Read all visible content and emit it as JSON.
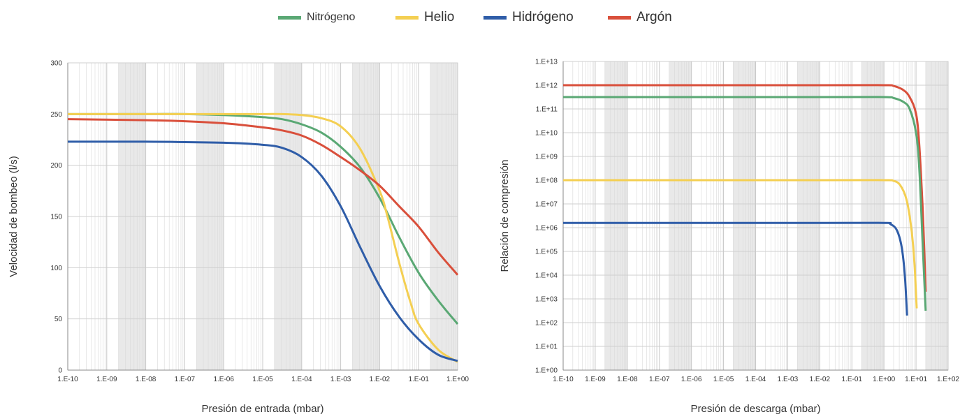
{
  "colors": {
    "nitrogeno": "#5aa874",
    "helio": "#f4cf52",
    "hidrogeno": "#2f5da8",
    "argon": "#d94f3b",
    "grid": "#d9d9d9",
    "band": "#e9e9e9"
  },
  "legend": [
    {
      "label": "Nitrógeno",
      "color": "#5aa874",
      "size": "small"
    },
    {
      "label": "Helio",
      "color": "#f4cf52",
      "size": "normal"
    },
    {
      "label": "Hidrógeno",
      "color": "#2f5da8",
      "size": "normal"
    },
    {
      "label": "Argón",
      "color": "#d94f3b",
      "size": "normal"
    }
  ],
  "chart_data": [
    {
      "type": "line",
      "title": "",
      "xlabel": "Presión de entrada (mbar)",
      "ylabel": "Velocidad de bombeo (l/s)",
      "x_scale": "log",
      "xlim": [
        -10,
        0
      ],
      "x_tick_labels": [
        "1.E-10",
        "1.E-09",
        "1.E-08",
        "1.E-07",
        "1.E-06",
        "1.E-05",
        "1.E-04",
        "1.E-03",
        "1.E-02",
        "1.E-01",
        "1.E+00"
      ],
      "ylim": [
        0,
        300
      ],
      "y_ticks": [
        0,
        50,
        100,
        150,
        200,
        250,
        300
      ],
      "grid": true,
      "series": [
        {
          "name": "Nitrógeno",
          "color": "#5aa874",
          "x": [
            -10,
            -8,
            -7,
            -6,
            -5,
            -4.5,
            -4,
            -3.5,
            -3,
            -2.5,
            -2,
            -1.5,
            -1,
            -0.5,
            0
          ],
          "y": [
            250,
            250,
            250,
            249,
            247,
            245,
            240,
            232,
            218,
            198,
            168,
            130,
            95,
            68,
            45
          ]
        },
        {
          "name": "Helio",
          "color": "#f4cf52",
          "x": [
            -10,
            -6,
            -5,
            -4.5,
            -4,
            -3.5,
            -3,
            -2.5,
            -2,
            -1.8,
            -1.5,
            -1.2,
            -1,
            -0.5,
            0
          ],
          "y": [
            250,
            250,
            250,
            250,
            249,
            246,
            238,
            216,
            175,
            150,
            105,
            65,
            45,
            20,
            8
          ]
        },
        {
          "name": "Hidrógeno",
          "color": "#2f5da8",
          "x": [
            -10,
            -8,
            -6,
            -5,
            -4.5,
            -4,
            -3.5,
            -3,
            -2.5,
            -2,
            -1.5,
            -1,
            -0.5,
            0
          ],
          "y": [
            223,
            223,
            222,
            220,
            217,
            208,
            190,
            160,
            120,
            82,
            52,
            30,
            15,
            9
          ]
        },
        {
          "name": "Argón",
          "color": "#d94f3b",
          "x": [
            -10,
            -8,
            -7,
            -6,
            -5,
            -4.5,
            -4,
            -3.5,
            -3,
            -2.5,
            -2,
            -1.5,
            -1,
            -0.5,
            0
          ],
          "y": [
            245,
            244,
            243,
            241,
            237,
            234,
            229,
            220,
            208,
            195,
            180,
            160,
            140,
            115,
            93
          ]
        }
      ]
    },
    {
      "type": "line",
      "title": "",
      "xlabel": "Presión de descarga (mbar)",
      "ylabel": "Relación de compresión",
      "x_scale": "log",
      "xlim": [
        -10,
        2
      ],
      "x_tick_labels": [
        "1.E-10",
        "1.E-09",
        "1.E-08",
        "1.E-07",
        "1.E-06",
        "1.E-05",
        "1.E-04",
        "1.E-03",
        "1.E-02",
        "1.E-01",
        "1.E+00",
        "1.E+01",
        "1.E+02"
      ],
      "y_scale": "log",
      "ylim": [
        0,
        13
      ],
      "y_tick_labels": [
        "1.E+00",
        "1.E+01",
        "1.E+02",
        "1.E+03",
        "1.E+04",
        "1.E+05",
        "1.E+06",
        "1.E+07",
        "1.E+08",
        "1.E+09",
        "1.E+10",
        "1.E+11",
        "1.E+12",
        "1.E+13"
      ],
      "grid": true,
      "series": [
        {
          "name": "Argón",
          "color": "#d94f3b",
          "x": [
            -10,
            -2,
            0,
            0.3,
            0.6,
            0.8,
            1.0,
            1.1,
            1.2,
            1.25,
            1.3
          ],
          "y": [
            12,
            12,
            12,
            11.97,
            11.8,
            11.5,
            10.8,
            9.5,
            7,
            5.3,
            3.3
          ]
        },
        {
          "name": "Nitrógeno",
          "color": "#5aa874",
          "x": [
            -10,
            -2,
            0,
            0.3,
            0.6,
            0.8,
            1.0,
            1.1,
            1.2,
            1.25,
            1.3
          ],
          "y": [
            11.5,
            11.5,
            11.5,
            11.46,
            11.3,
            11.0,
            10.0,
            8.5,
            5.5,
            4,
            2.5
          ]
        },
        {
          "name": "Helio",
          "color": "#f4cf52",
          "x": [
            -10,
            -2,
            0,
            0.3,
            0.5,
            0.7,
            0.85,
            0.95,
            1.02
          ],
          "y": [
            8,
            8,
            8,
            7.97,
            7.8,
            7.2,
            6,
            4.5,
            2.6
          ]
        },
        {
          "name": "Hidrógeno",
          "color": "#2f5da8",
          "x": [
            -10,
            -2,
            0,
            0.2,
            0.4,
            0.55,
            0.65,
            0.72
          ],
          "y": [
            6.2,
            6.2,
            6.2,
            6.15,
            5.9,
            5.2,
            4,
            2.3
          ]
        }
      ]
    }
  ]
}
